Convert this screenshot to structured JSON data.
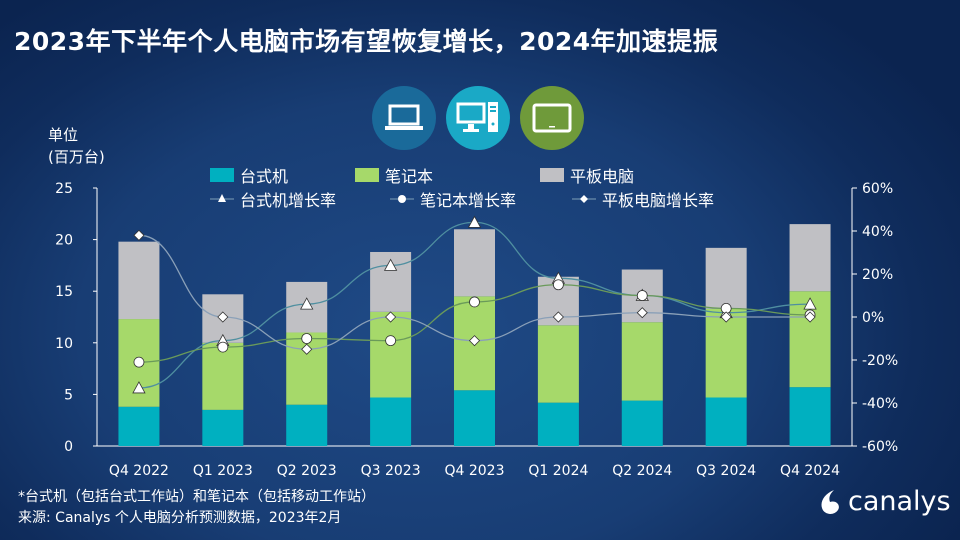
{
  "title": "2023年下半年个人电脑市场有望恢复增长，2024年加速提振",
  "icons": [
    "laptop-icon",
    "desktop-icon",
    "tablet-icon"
  ],
  "unit_label": [
    "单位",
    "(百万台)"
  ],
  "footnote": "*台式机（包括台式工作站）和笔记本（包括移动工作站）",
  "source": "来源: Canalys 个人电脑分析预测数据，2023年2月",
  "logo_text": "canalys",
  "colors": {
    "desktop": "#00b0c0",
    "notebook": "#a6d96a",
    "tablet": "#c0c0c4",
    "background": "#163a70"
  },
  "chart_data": {
    "type": "bar",
    "stacked": true,
    "categories": [
      "Q4 2022",
      "Q1 2023",
      "Q2 2023",
      "Q3 2023",
      "Q4 2023",
      "Q1 2024",
      "Q2 2024",
      "Q3 2024",
      "Q4 2024"
    ],
    "series": [
      {
        "name": "台式机",
        "axis": "left",
        "values": [
          3.8,
          3.5,
          4.0,
          4.7,
          5.4,
          4.2,
          4.4,
          4.7,
          5.7
        ]
      },
      {
        "name": "笔记本",
        "axis": "left",
        "values": [
          8.5,
          6.5,
          7.0,
          8.3,
          9.1,
          7.5,
          7.6,
          8.6,
          9.3
        ]
      },
      {
        "name": "平板电脑",
        "axis": "left",
        "values": [
          7.5,
          4.7,
          4.9,
          5.8,
          6.5,
          4.7,
          5.1,
          5.9,
          6.5
        ]
      }
    ],
    "line_series": [
      {
        "name": "台式机增长率",
        "axis": "right",
        "marker": "triangle",
        "values": [
          -33,
          -11,
          6,
          24,
          44,
          18,
          10,
          2,
          6
        ]
      },
      {
        "name": "笔记本增长率",
        "axis": "right",
        "marker": "circle",
        "values": [
          -21,
          -14,
          -10,
          -11,
          7,
          15,
          10,
          4,
          1
        ]
      },
      {
        "name": "平板电脑增长率",
        "axis": "right",
        "marker": "diamond",
        "values": [
          38,
          0,
          -15,
          0,
          -11,
          0,
          2,
          0,
          0
        ]
      }
    ],
    "ylim": [
      0,
      25
    ],
    "yticks": [
      "0",
      "5",
      "10",
      "15",
      "20",
      "25"
    ],
    "y2lim": [
      -60,
      60
    ],
    "y2ticks": [
      "-60%",
      "-40%",
      "-20%",
      "0%",
      "20%",
      "40%",
      "60%"
    ],
    "legend": "top",
    "grid": false
  }
}
